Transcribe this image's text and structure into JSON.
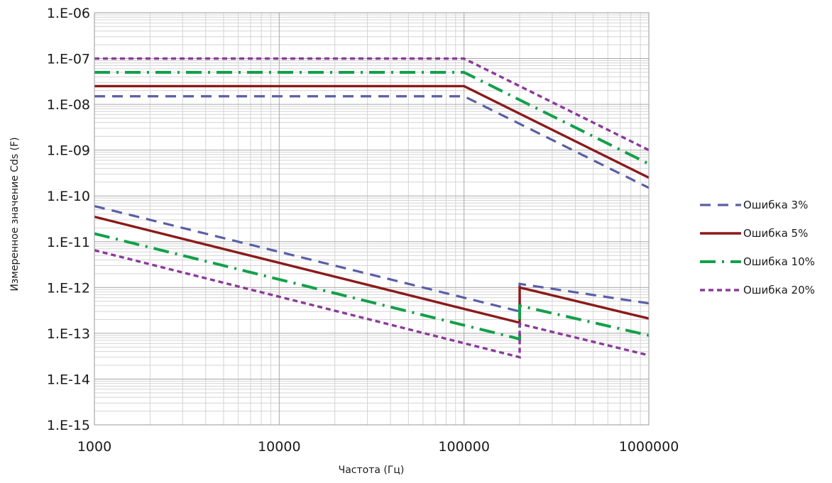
{
  "chart_data": {
    "type": "line",
    "title": "",
    "xlabel": "Частота (Гц)",
    "ylabel": "Измеренное значение Cds (F)",
    "x_scale": "log",
    "y_scale": "log",
    "xlim": [
      1000,
      1000000
    ],
    "ylim": [
      1e-15,
      1e-06
    ],
    "x_ticks": [
      1000,
      10000,
      100000,
      1000000
    ],
    "x_tick_labels": [
      "1000",
      "10000",
      "100000",
      "1000000"
    ],
    "y_ticks": [
      1e-06,
      1e-07,
      1e-08,
      1e-09,
      1e-10,
      1e-11,
      1e-12,
      1e-13,
      1e-14,
      1e-15
    ],
    "y_tick_labels": [
      "1.E-06",
      "1.E-07",
      "1.E-08",
      "1.E-09",
      "1.E-10",
      "1.E-11",
      "1.E-12",
      "1.E-13",
      "1.E-14",
      "1.E-15"
    ],
    "grid": true,
    "legend_position": "right",
    "series": [
      {
        "name": "Ошибка 3%",
        "color": "#5b5ea6",
        "dash": "dashed",
        "upper": [
          [
            1000,
            1.5e-08
          ],
          [
            100000,
            1.5e-08
          ],
          [
            1000000,
            1.5e-10
          ]
        ],
        "lower": [
          [
            1000,
            6e-11
          ],
          [
            200000,
            3e-13
          ],
          [
            200000,
            1.2e-12
          ],
          [
            1000000,
            4.5e-13
          ]
        ]
      },
      {
        "name": "Ошибка 5%",
        "color": "#8b1a1a",
        "dash": "solid",
        "upper": [
          [
            1000,
            2.5e-08
          ],
          [
            100000,
            2.5e-08
          ],
          [
            1000000,
            2.5e-10
          ]
        ],
        "lower": [
          [
            1000,
            3.5e-11
          ],
          [
            200000,
            1.7e-13
          ],
          [
            200000,
            1e-12
          ],
          [
            1000000,
            2.1e-13
          ]
        ]
      },
      {
        "name": "Ошибка 10%",
        "color": "#13a04a",
        "dash": "dashdot",
        "upper": [
          [
            1000,
            5e-08
          ],
          [
            100000,
            5e-08
          ],
          [
            1000000,
            5e-10
          ]
        ],
        "lower": [
          [
            1000,
            1.5e-11
          ],
          [
            200000,
            7.5e-14
          ],
          [
            200000,
            4e-13
          ],
          [
            1000000,
            9e-14
          ]
        ]
      },
      {
        "name": "Ошибка 20%",
        "color": "#8b3a9a",
        "dash": "dotted",
        "upper": [
          [
            1000,
            1e-07
          ],
          [
            100000,
            1e-07
          ],
          [
            1000000,
            1e-09
          ]
        ],
        "lower": [
          [
            1000,
            6.5e-12
          ],
          [
            200000,
            3e-14
          ],
          [
            200000,
            1.6e-13
          ],
          [
            1000000,
            3.3e-14
          ]
        ]
      }
    ]
  }
}
